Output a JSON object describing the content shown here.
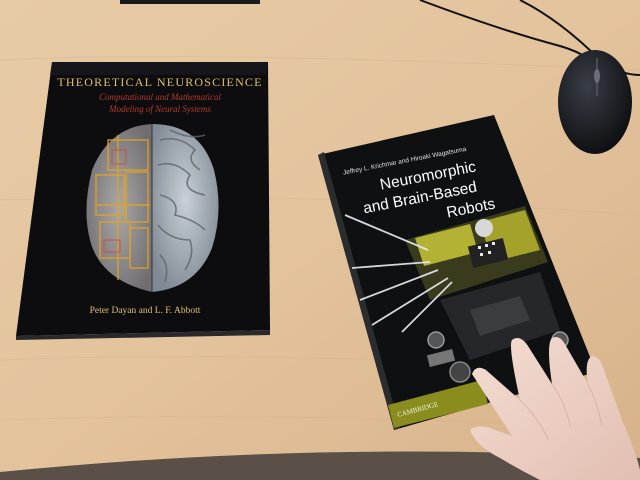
{
  "book_left": {
    "title": "THEORETICAL NEUROSCIENCE",
    "subtitle_line1": "Computational and Mathematical",
    "subtitle_line2": "Modeling of Neural Systems",
    "authors": "Peter Dayan and L. F. Abbott"
  },
  "book_right": {
    "authors": "Jeffrey L. Krichmar and Hiroaki Wagatsuma",
    "title_line1": "Neuromorphic",
    "title_line2": "and Brain-Based",
    "title_line3": "Robots",
    "publisher": "CAMBRIDGE"
  },
  "colors": {
    "desk": "#e3c49f",
    "cover_black": "#111114",
    "title_gold": "#e2c06a",
    "subtitle_red": "#b23a2a",
    "publisher_band": "#8a8c1e"
  }
}
